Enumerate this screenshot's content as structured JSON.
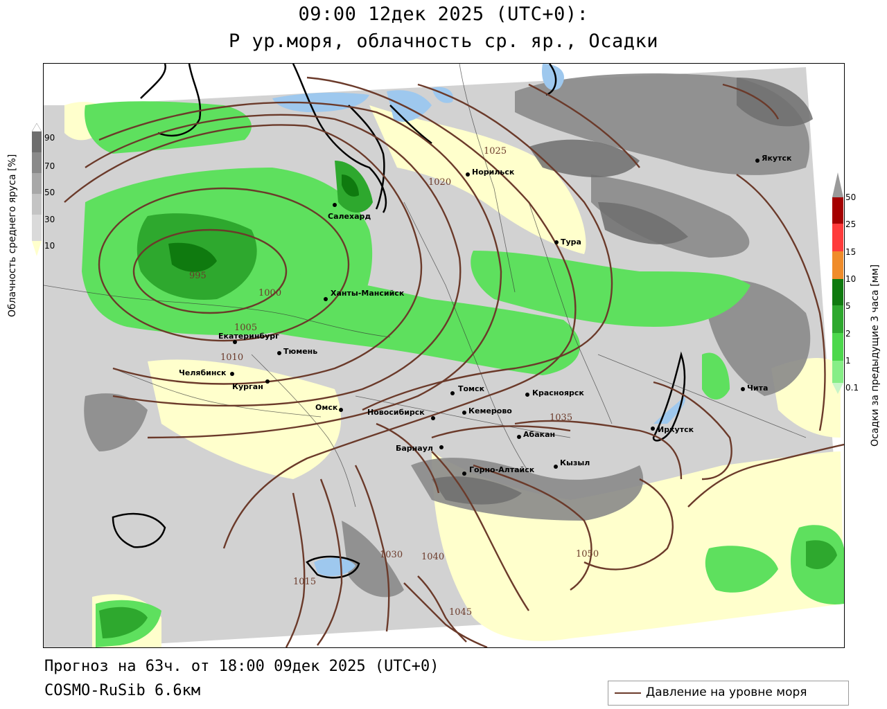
{
  "header": {
    "title_line1": "09:00 12дек 2025 (UTC+0):",
    "title_line2": "P ур.моря, облачность ср. яр., Осадки"
  },
  "footer": {
    "forecast": "Прогноз на 63ч. от 18:00 09дек 2025 (UTC+0)",
    "model": "COSMO-RuSib 6.6км",
    "legend_line": "Давление на уровне моря"
  },
  "cloud_scale": {
    "label": "Облачность среднего яруса [%]",
    "ticks": [
      "90",
      "70",
      "50",
      "30",
      "10"
    ],
    "colors": [
      "#6e6e6e",
      "#8a8a8a",
      "#a8a8a8",
      "#c4c4c4",
      "#dadada",
      "#ffffcc"
    ]
  },
  "precip_scale": {
    "label": "Осадки за предыдущие 3 часа [мм]",
    "ticks": [
      "50",
      "25",
      "15",
      "10",
      "5",
      "2",
      "1",
      "0.1"
    ],
    "colors": [
      "#9a9a9a",
      "#a50000",
      "#ff3b3b",
      "#f08c2a",
      "#0f7a0f",
      "#2ea82e",
      "#4cd84c",
      "#86ee86",
      "#c8f5c8"
    ]
  },
  "cities": [
    {
      "name": "Салехард"
    },
    {
      "name": "Норильск"
    },
    {
      "name": "Якутск"
    },
    {
      "name": "Тура"
    },
    {
      "name": "Ханты-Мансийск"
    },
    {
      "name": "Екатеринбург"
    },
    {
      "name": "Тюмень"
    },
    {
      "name": "Челябинск"
    },
    {
      "name": "Курган"
    },
    {
      "name": "Омск"
    },
    {
      "name": "Новосибирск"
    },
    {
      "name": "Томск"
    },
    {
      "name": "Кемерово"
    },
    {
      "name": "Красноярск"
    },
    {
      "name": "Абакан"
    },
    {
      "name": "Барнаул"
    },
    {
      "name": "Горно-Алтайск"
    },
    {
      "name": "Кызыл"
    },
    {
      "name": "Иркутск"
    },
    {
      "name": "Чита"
    }
  ],
  "isobar_labels": [
    "995",
    "1000",
    "1005",
    "1010",
    "1015",
    "1020",
    "1025",
    "1030",
    "1035",
    "1040",
    "1045",
    "1050"
  ],
  "colors": {
    "isobar": "#6b3a2a",
    "land_clear": "#ffffcc",
    "sea": "#9ec8ee",
    "light_cloud": "#d2d2d2"
  }
}
